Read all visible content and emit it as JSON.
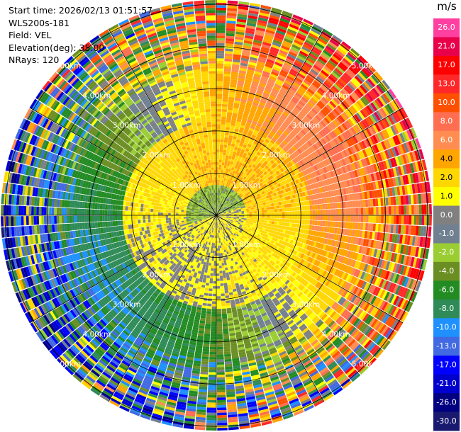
{
  "info": {
    "start_time": "Start time: 2026/02/13 01:51:57",
    "station": "WLS200s-181",
    "field": "Field: VEL",
    "elevation": "Elevation(deg): 35.00",
    "nrays": "NRays: 120"
  },
  "colorbar": {
    "title": "m/s",
    "ticks": [
      "26.0",
      "21.0",
      "17.0",
      "13.0",
      "10.0",
      "8.0",
      "6.0",
      "4.0",
      "2.0",
      "1.0",
      "0.0",
      "-1.0",
      "-2.0",
      "-4.0",
      "-6.0",
      "-8.0",
      "-10.0",
      "-13.0",
      "-17.0",
      "-21.0",
      "-26.0",
      "-30.0"
    ],
    "colors": [
      "#ff40a0",
      "#e8004a",
      "#ff0000",
      "#ff2828",
      "#ff5000",
      "#ff6e50",
      "#ff8c50",
      "#ffa500",
      "#ffd700",
      "#ffff00",
      "#808080",
      "#708090",
      "#9acd32",
      "#6b8e23",
      "#228b22",
      "#2e8b57",
      "#1e90ff",
      "#4169e1",
      "#0000ff",
      "#0000cd",
      "#000080",
      "#191970"
    ]
  },
  "chart_data": {
    "type": "heatmap",
    "subtype": "radar-ppi",
    "field": "VEL",
    "units": "m/s",
    "nrays": 120,
    "range_rings_km": [
      1,
      2,
      3,
      4,
      5
    ],
    "ring_labels": [
      "1.00km",
      "2.00km",
      "3.00km",
      "4.00km",
      "5.00km"
    ],
    "spoke_interval_deg": 30,
    "value_range": [
      -30,
      26
    ],
    "pattern_description_omitted": true,
    "scheme": "receding (warm) northeast/east, approaching (green) west/southwest; yellow inner ring near 1-2 km"
  }
}
